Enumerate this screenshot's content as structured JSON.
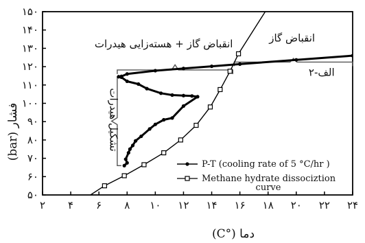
{
  "chart_data": {
    "type": "line",
    "xlabel": "دما (°C)",
    "ylabel": "فشار (bar)",
    "xlim": [
      2,
      24
    ],
    "ylim": [
      50,
      150
    ],
    "x_ticks": [
      2,
      4,
      6,
      8,
      10,
      12,
      14,
      16,
      18,
      20,
      22,
      24
    ],
    "x_tick_labels": [
      "۲",
      "۴",
      "۶",
      "۸",
      "۱۰",
      "۱۲",
      "۱۴",
      "۱۶",
      "۱۸",
      "۲۰",
      "۲۲",
      "۲۴"
    ],
    "y_ticks": [
      50,
      60,
      70,
      80,
      90,
      100,
      110,
      120,
      130,
      140,
      150
    ],
    "y_tick_labels": [
      "۵۰",
      "۶۰",
      "۷۰",
      "۸۰",
      "۹۰",
      "۱۰۰",
      "۱۱۰",
      "۱۲۰",
      "۱۳۰",
      "۱۴۰",
      "۱۵۰"
    ],
    "grid": false,
    "legend_position": "bottom-right",
    "series": [
      {
        "name": "P-T (cooling rate of 5 °C/hr )",
        "marker": "dot",
        "color": "#000000",
        "x": [
          24.0,
          20.0,
          16.0,
          14.0,
          12.0,
          10.0,
          8.0,
          7.6,
          7.4,
          7.6,
          8.0,
          8.8,
          9.4,
          10.4,
          11.2,
          12.0,
          12.6,
          13.0,
          12.0,
          11.2,
          10.6,
          10.0,
          9.6,
          9.0,
          8.6,
          8.4,
          8.2,
          8.1,
          7.9,
          8.0,
          7.8
        ],
        "y": [
          126.0,
          123.7,
          121.4,
          120.2,
          119.0,
          117.8,
          116.0,
          114.7,
          114.5,
          114.2,
          112.0,
          110.5,
          108.0,
          105.5,
          104.5,
          104.2,
          104.0,
          103.6,
          98.5,
          92.0,
          91.0,
          88.5,
          86.0,
          82.0,
          79.5,
          77.0,
          75.0,
          73.0,
          69.5,
          67.5,
          66.0
        ]
      },
      {
        "name": "Methane hydrate dissociztion curve",
        "marker": "square",
        "color": "#000000",
        "x": [
          6.4,
          7.8,
          9.2,
          10.6,
          11.8,
          12.9,
          13.9,
          14.6,
          15.3,
          15.9
        ],
        "y": [
          55.0,
          60.5,
          66.5,
          73.0,
          80.0,
          88.0,
          98.0,
          107.5,
          117.5,
          127.0
        ]
      }
    ],
    "dissociation_curve_extent": {
      "x": [
        5.4,
        17.8
      ],
      "y": [
        50,
        150
      ]
    },
    "annotations": [
      {
        "text": "انقباض گاز",
        "x": 19.7,
        "y": 133.8
      },
      {
        "text": "انقباض گاز + هسته‌زایی هیدرات",
        "x": 10.6,
        "y": 130.6
      },
      {
        "text": "الف-۲",
        "x": 21.8,
        "y": 115.0
      },
      {
        "text": "تشکیل هیدرات",
        "x": 6.8,
        "y": 91.0,
        "rotation": 90
      }
    ],
    "brackets": [
      {
        "orientation": "horizontal",
        "x": [
          7.3,
          15.5
        ],
        "y": 118.2,
        "tip_y": 121.0
      },
      {
        "orientation": "horizontal",
        "x": [
          15.6,
          24.0
        ],
        "y": 122.5,
        "tip_y": 124.5
      },
      {
        "orientation": "vertical",
        "y": [
          66.0,
          114.5
        ],
        "x": 7.3,
        "tip_x": 6.9
      }
    ]
  }
}
